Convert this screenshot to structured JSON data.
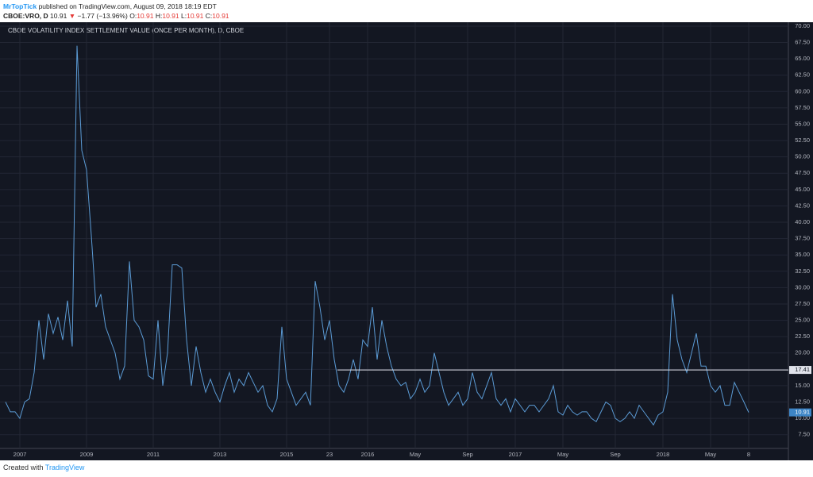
{
  "header": {
    "publisher": "MrTopTick",
    "published": " published on TradingView.com, August 09, 2018 18:19 EDT",
    "symbol": "CBOE:VRO, D",
    "last": "10.91",
    "arrow": "▼",
    "change": "−1.77 (−13.96%)",
    "ohlc": [
      {
        "label": "O:",
        "value": "10.91"
      },
      {
        "label": "H:",
        "value": "10.91"
      },
      {
        "label": "L:",
        "value": "10.91"
      },
      {
        "label": "C:",
        "value": "10.91"
      }
    ]
  },
  "footer": {
    "text": "Created with",
    "brand": "TradingView"
  },
  "chart_data": {
    "type": "line",
    "title": "CBOE VOLATILITY INDEX SETTLEMENT VALUE (ONCE PER MONTH), D, CBOE",
    "color": "#5b9bd5",
    "grid": true,
    "categories": [
      null,
      null,
      null,
      "2007",
      null,
      null,
      null,
      null,
      null,
      null,
      null,
      null,
      null,
      null,
      null,
      null,
      null,
      "2009",
      null,
      null,
      null,
      null,
      null,
      null,
      null,
      null,
      null,
      null,
      null,
      null,
      null,
      "2011",
      null,
      null,
      null,
      null,
      null,
      null,
      null,
      null,
      null,
      null,
      null,
      null,
      null,
      "2013",
      null,
      null,
      null,
      null,
      null,
      null,
      null,
      null,
      null,
      null,
      null,
      null,
      null,
      "2015",
      null,
      null,
      null,
      null,
      null,
      null,
      null,
      null,
      "23",
      null,
      null,
      null,
      null,
      null,
      null,
      null,
      "2016",
      null,
      null,
      null,
      null,
      null,
      null,
      null,
      null,
      null,
      "May",
      null,
      null,
      null,
      null,
      null,
      null,
      null,
      null,
      null,
      null,
      "Sep",
      null,
      null,
      null,
      null,
      null,
      null,
      null,
      null,
      null,
      "2017",
      null,
      null,
      null,
      null,
      null,
      null,
      null,
      null,
      null,
      "May",
      null,
      null,
      null,
      null,
      null,
      null,
      null,
      null,
      null,
      null,
      "Sep",
      null,
      null,
      null,
      null,
      null,
      null,
      null,
      null,
      null,
      "2018",
      null,
      null,
      null,
      null,
      null,
      null,
      null,
      null,
      null,
      "May",
      null,
      null,
      null,
      null,
      null,
      null,
      null,
      "8"
    ],
    "values": [
      12.5,
      11,
      11,
      10,
      12.5,
      13,
      17,
      25,
      19,
      26,
      23,
      25.5,
      22,
      28,
      21,
      67,
      51,
      48,
      38,
      27,
      29,
      24,
      22,
      20,
      16,
      18,
      34,
      25,
      24,
      22,
      16.5,
      16,
      25,
      15,
      20,
      33.5,
      33.5,
      33,
      22,
      15,
      21,
      17,
      14,
      16,
      14,
      12.5,
      15,
      17,
      14,
      16,
      15,
      17,
      15.5,
      14,
      15,
      12,
      11,
      13,
      24,
      16,
      14,
      12,
      13,
      14,
      12,
      31,
      27,
      22,
      25,
      19,
      15,
      14,
      16,
      19,
      16,
      22,
      21,
      27,
      19,
      25,
      21,
      18,
      16,
      15,
      15.5,
      13,
      14,
      16,
      14,
      15,
      20,
      17,
      14,
      12,
      13,
      14,
      12,
      13,
      17,
      14,
      13,
      15,
      17,
      13,
      12,
      13,
      11,
      13,
      12,
      11,
      12,
      12,
      11,
      12,
      13,
      15,
      11,
      10.5,
      12,
      11,
      10.5,
      11,
      11,
      10,
      9.5,
      11,
      12.5,
      12,
      10,
      9.5,
      10,
      11,
      10,
      12,
      11,
      10,
      9,
      10.5,
      11,
      14,
      29,
      22,
      19,
      17,
      20,
      23,
      18,
      18,
      15,
      14,
      15,
      12,
      12,
      15.5,
      14,
      12.5,
      10.91
    ],
    "hline": 17.41,
    "ylim": [
      5.4,
      70.6
    ],
    "yticks": [
      {
        "value": 7.5,
        "label": "7.50"
      },
      {
        "value": 10,
        "label": "10.00"
      },
      {
        "value": 12.5,
        "label": "12.50"
      },
      {
        "value": 15,
        "label": "15.00"
      },
      {
        "value": 17.5,
        "label": "17.50"
      },
      {
        "value": 20,
        "label": "20.00"
      },
      {
        "value": 22.5,
        "label": "22.50"
      },
      {
        "value": 25,
        "label": "25.00"
      },
      {
        "value": 27.5,
        "label": "27.50"
      },
      {
        "value": 30,
        "label": "30.00"
      },
      {
        "value": 32.5,
        "label": "32.50"
      },
      {
        "value": 35,
        "label": "35.00"
      },
      {
        "value": 37.5,
        "label": "37.50"
      },
      {
        "value": 40,
        "label": "40.00"
      },
      {
        "value": 42.5,
        "label": "42.50"
      },
      {
        "value": 45,
        "label": "45.00"
      },
      {
        "value": 47.5,
        "label": "47.50"
      },
      {
        "value": 50,
        "label": "50.00"
      },
      {
        "value": 52.5,
        "label": "52.50"
      },
      {
        "value": 55,
        "label": "55.00"
      },
      {
        "value": 57.5,
        "label": "57.50"
      },
      {
        "value": 60,
        "label": "60.00"
      },
      {
        "value": 62.5,
        "label": "62.50"
      },
      {
        "value": 65,
        "label": "65.00"
      },
      {
        "value": 67.5,
        "label": "67.50"
      },
      {
        "value": 70,
        "label": "70.00"
      }
    ]
  }
}
